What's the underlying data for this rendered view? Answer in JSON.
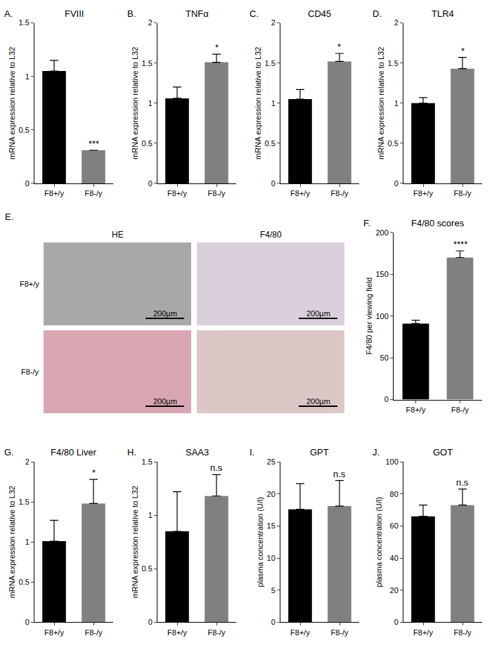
{
  "chart_data": [
    {
      "type": "bar",
      "label": "A.",
      "title": "FVIII",
      "y_label": "mRNA expression relative to L32",
      "categories": [
        "F8+/y",
        "F8-/y"
      ],
      "values": [
        1.05,
        0.31
      ],
      "errors": [
        0.1,
        0.0
      ],
      "colors": [
        "#000000",
        "#808080"
      ],
      "significance": "***",
      "ylim": [
        0,
        1.5
      ],
      "yticks": [
        0,
        0.5,
        1,
        1.5
      ]
    },
    {
      "type": "bar",
      "label": "B.",
      "title": "TNFα",
      "y_label": "mRNA expression relative to L32",
      "categories": [
        "F8+/y",
        "F8-/y"
      ],
      "values": [
        1.06,
        1.51
      ],
      "errors": [
        0.14,
        0.1
      ],
      "colors": [
        "#000000",
        "#808080"
      ],
      "significance": "*",
      "ylim": [
        0,
        2
      ],
      "yticks": [
        0,
        0.5,
        1,
        1.5,
        2
      ]
    },
    {
      "type": "bar",
      "label": "C.",
      "title": "CD45",
      "y_label": "mRNA expression relative to L32",
      "categories": [
        "F8+/y",
        "F8-/y"
      ],
      "values": [
        1.05,
        1.52
      ],
      "errors": [
        0.12,
        0.1
      ],
      "colors": [
        "#000000",
        "#808080"
      ],
      "significance": "*",
      "ylim": [
        0,
        2
      ],
      "yticks": [
        0,
        0.5,
        1,
        1.5,
        2
      ]
    },
    {
      "type": "bar",
      "label": "D.",
      "title": "TLR4",
      "y_label": "mRNA expression relative to L32",
      "categories": [
        "F8+/y",
        "F8-/y"
      ],
      "values": [
        1.0,
        1.43
      ],
      "errors": [
        0.07,
        0.14
      ],
      "colors": [
        "#000000",
        "#808080"
      ],
      "significance": "*",
      "ylim": [
        0,
        2
      ],
      "yticks": [
        0,
        0.5,
        1,
        1.5,
        2
      ]
    },
    {
      "type": "bar",
      "label": "F.",
      "title": "F4/80 scores",
      "y_label": "F4/80 per viewing field",
      "categories": [
        "F8+/y",
        "F8-/y"
      ],
      "values": [
        91,
        170
      ],
      "errors": [
        4,
        8
      ],
      "colors": [
        "#000000",
        "#808080"
      ],
      "significance": "****",
      "ylim": [
        0,
        200
      ],
      "yticks": [
        0,
        50,
        100,
        150,
        200
      ]
    },
    {
      "type": "bar",
      "label": "G.",
      "title": "F4/80 Liver",
      "y_label": "mRNA expression relative to L32",
      "categories": [
        "F8+/y",
        "F8-/y"
      ],
      "values": [
        1.01,
        1.48
      ],
      "errors": [
        0.26,
        0.3
      ],
      "colors": [
        "#000000",
        "#808080"
      ],
      "significance": "*",
      "ylim": [
        0,
        2
      ],
      "yticks": [
        0,
        0.5,
        1,
        1.5,
        2
      ]
    },
    {
      "type": "bar",
      "label": "H.",
      "title": "SAA3",
      "y_label": "mRNA expression relative to L32",
      "categories": [
        "F8+/y",
        "F8-/y"
      ],
      "values": [
        0.85,
        1.18
      ],
      "errors": [
        0.37,
        0.2
      ],
      "colors": [
        "#000000",
        "#808080"
      ],
      "significance": "n.s",
      "ylim": [
        0,
        1.5
      ],
      "yticks": [
        0,
        0.5,
        1,
        1.5
      ]
    },
    {
      "type": "bar",
      "label": "I.",
      "title": "GPT",
      "y_label": "plasma concentration (U/l)",
      "categories": [
        "F8+/y",
        "F8-/y"
      ],
      "values": [
        17.6,
        18.1
      ],
      "errors": [
        4,
        4
      ],
      "colors": [
        "#000000",
        "#808080"
      ],
      "significance": "n.s",
      "ylim": [
        0,
        25
      ],
      "yticks": [
        0,
        5,
        10,
        15,
        20,
        25
      ]
    },
    {
      "type": "bar",
      "label": "J.",
      "title": "GOT",
      "y_label": "plasma concentration (U/l)",
      "categories": [
        "F8+/y",
        "F8-/y"
      ],
      "values": [
        66,
        73
      ],
      "errors": [
        7,
        10
      ],
      "colors": [
        "#000000",
        "#808080"
      ],
      "significance": "n.s",
      "ylim": [
        0,
        100
      ],
      "yticks": [
        0,
        20,
        40,
        60,
        80,
        100
      ]
    }
  ],
  "image_panel": {
    "label": "E.",
    "columns": [
      "HE",
      "F4/80"
    ],
    "rows": [
      "F8+/y",
      "F8-/y"
    ],
    "scale_bar": "200µm"
  }
}
